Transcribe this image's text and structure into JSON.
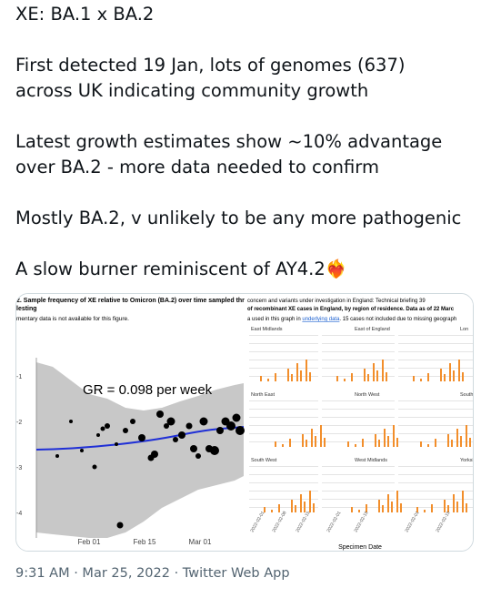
{
  "tweet": {
    "paragraphs": [
      [
        "XE: BA.1 x BA.2"
      ],
      [
        "First detected 19 Jan, lots of genomes (637)",
        "across UK indicating community growth"
      ],
      [
        "Latest growth estimates show ~10% advantage",
        "over BA.2 - more data needed to confirm"
      ],
      [
        "Mostly BA.2, v unlikely to be any more pathogenic"
      ],
      [
        "A slow burner reminiscent of AY4.2❤️‍🔥"
      ]
    ]
  },
  "images": [
    {
      "title_lines": [
        "2. Sample frequency of XE relative to Omicron (BA.2) over time sampled thr",
        "lesting"
      ],
      "note": "mentary data is not available for this figure.",
      "annotation": "GR = 0.098 per week",
      "y_tick_labels": [
        "-1",
        "-2",
        "-3",
        "-4"
      ],
      "x_tick_labels": [
        "Feb 01",
        "Feb 15",
        "Mar 01"
      ]
    },
    {
      "title_lines": [
        "concern and variants under investigation in England: Technical briefing 39",
        "of recombinant XE cases in England, by region of residence. Data as of 22 Marc"
      ],
      "note_parts": [
        "a used in this graph in ",
        "underlying data",
        ". 15 cases not included due to missing geograph"
      ],
      "regions": [
        "East Midlands",
        "East of England",
        "Lon",
        "North East",
        "North West",
        "South",
        "South West",
        "West Midlands",
        "Yorkshire a"
      ],
      "x_axis_label": "Specimen Date"
    }
  ],
  "footer": {
    "meta": "9:31 AM · Mar 25, 2022 · Twitter Web App"
  }
}
